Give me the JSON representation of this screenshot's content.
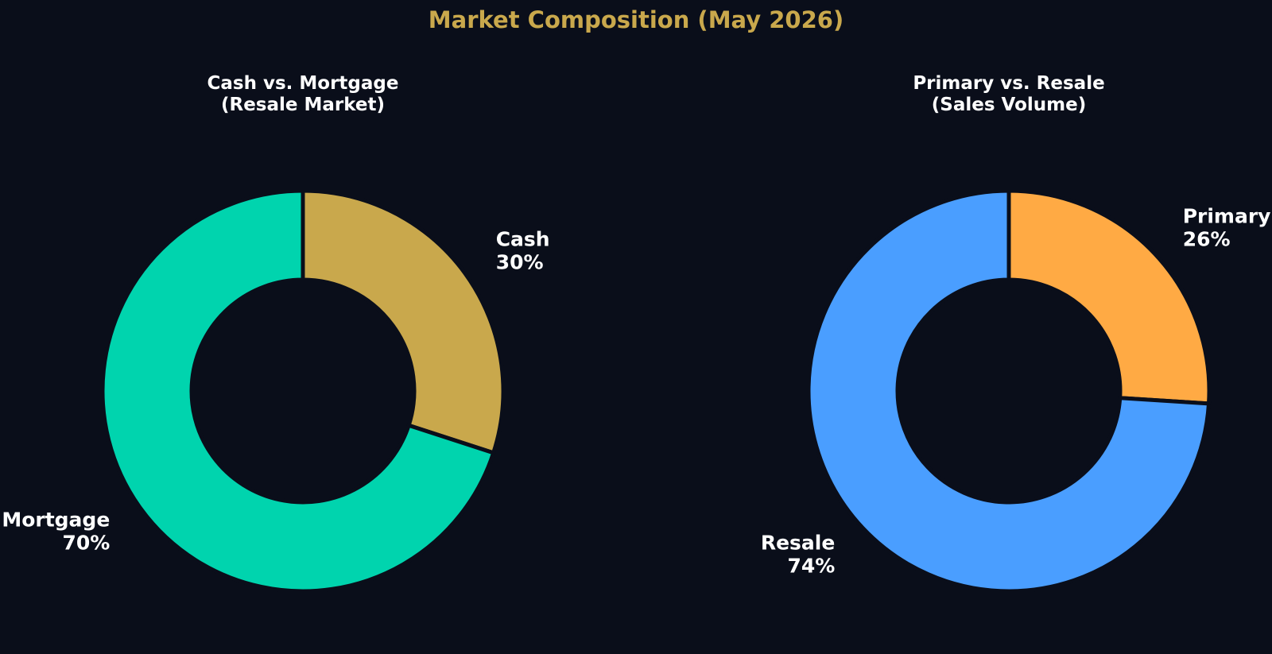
{
  "title": "Market Composition (May 2026)",
  "chart_data": [
    {
      "type": "pie",
      "style": "donut",
      "title": "Cash vs. Mortgage\n(Resale Market)",
      "start_angle": "12 o'clock",
      "direction": "clockwise",
      "slices": [
        {
          "label": "Cash",
          "value": 30,
          "value_label": "30%",
          "color": "#c9a84c"
        },
        {
          "label": "Mortgage",
          "value": 70,
          "value_label": "70%",
          "color": "#00d4ae"
        }
      ]
    },
    {
      "type": "pie",
      "style": "donut",
      "title": "Primary vs. Resale\n(Sales Volume)",
      "start_angle": "12 o'clock",
      "direction": "clockwise",
      "slices": [
        {
          "label": "Primary",
          "value": 26,
          "value_label": "26%",
          "color": "#ffaa44"
        },
        {
          "label": "Resale",
          "value": 74,
          "value_label": "74%",
          "color": "#4a9eff"
        }
      ]
    }
  ],
  "colors": {
    "background": "#0a0e1a",
    "title": "#c9a84c",
    "text": "#ffffff"
  }
}
